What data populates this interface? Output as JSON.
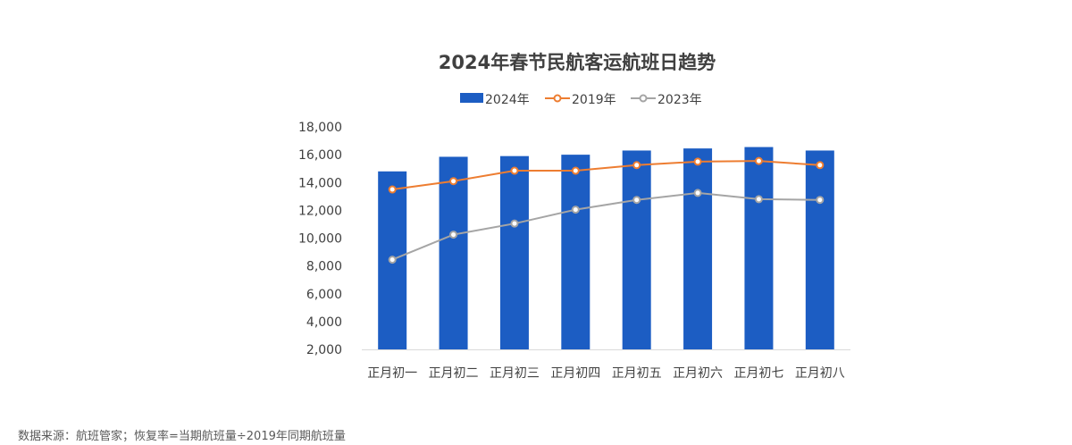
{
  "source_note": "数据来源：航班管家；恢复率=当期航班量÷2019年同期航班量",
  "chart_data": {
    "type": "bar",
    "title": "2024年春节民航客运航班日趋势",
    "categories": [
      "正月初一",
      "正月初二",
      "正月初三",
      "正月初四",
      "正月初五",
      "正月初六",
      "正月初七",
      "正月初八"
    ],
    "ylim": [
      2000,
      18000
    ],
    "yticks": [
      2000,
      4000,
      6000,
      8000,
      10000,
      12000,
      14000,
      16000,
      18000
    ],
    "ytick_labels": [
      "2,000",
      "4,000",
      "6,000",
      "8,000",
      "10,000",
      "12,000",
      "14,000",
      "16,000",
      "18,000"
    ],
    "grid": false,
    "legend_position": "top",
    "series": [
      {
        "name": "2024年",
        "kind": "bar",
        "color": "#1c5dc3",
        "values": [
          14800,
          15850,
          15900,
          16000,
          16300,
          16450,
          16550,
          16300
        ]
      },
      {
        "name": "2019年",
        "kind": "line",
        "color": "#ed7d31",
        "values": [
          13500,
          14100,
          14850,
          14850,
          15250,
          15500,
          15550,
          15250
        ]
      },
      {
        "name": "2023年",
        "kind": "line",
        "color": "#a5a5a5",
        "values": [
          8450,
          10250,
          11050,
          12050,
          12750,
          13250,
          12800,
          12750
        ]
      }
    ]
  }
}
